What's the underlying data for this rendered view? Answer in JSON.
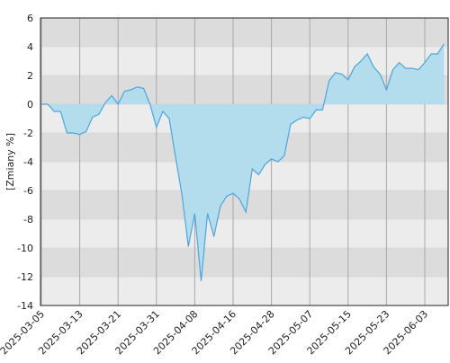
{
  "chart_data": {
    "type": "area",
    "y_label": "[Zmiany %]",
    "categories": [
      "2025-03-05",
      null,
      null,
      null,
      null,
      null,
      "2025-03-13",
      null,
      null,
      null,
      null,
      null,
      "2025-03-21",
      null,
      null,
      null,
      null,
      null,
      "2025-03-31",
      null,
      null,
      null,
      null,
      null,
      "2025-04-08",
      null,
      null,
      null,
      null,
      null,
      "2025-04-16",
      null,
      null,
      null,
      null,
      null,
      "2025-04-28",
      null,
      null,
      null,
      null,
      null,
      "2025-05-07",
      null,
      null,
      null,
      null,
      null,
      "2025-05-15",
      null,
      null,
      null,
      null,
      null,
      "2025-05-23",
      null,
      null,
      null,
      null,
      null,
      "2025-06-03",
      null,
      null,
      null
    ],
    "values": [
      0,
      0,
      -0.5,
      -0.5,
      -2,
      -2,
      -2.1,
      -1.9,
      -0.9,
      -0.7,
      0.1,
      0.6,
      0,
      0.9,
      1,
      1.2,
      1.1,
      0,
      -1.6,
      -0.5,
      -1,
      -3.7,
      -6.3,
      -9.9,
      -7.6,
      -12.3,
      -7.6,
      -9.2,
      -7.1,
      -6.4,
      -6.2,
      -6.6,
      -7.5,
      -4.5,
      -4.9,
      -4.2,
      -3.8,
      -4,
      -3.6,
      -1.4,
      -1.1,
      -0.9,
      -1,
      -0.4,
      -0.4,
      1.6,
      2.2,
      2.1,
      1.7,
      2.6,
      3,
      3.5,
      2.6,
      2.1,
      1,
      2.4,
      2.9,
      2.5,
      2.5,
      2.4,
      2.9,
      3.5,
      3.5,
      4.2
    ],
    "color": "#4da6e0",
    "fill": "#b3dcec",
    "ylim": [
      -14,
      6
    ],
    "yticks": [
      -14,
      -12,
      -10,
      -8,
      -6,
      -4,
      -2,
      0,
      2,
      4,
      6
    ],
    "grid": true
  }
}
